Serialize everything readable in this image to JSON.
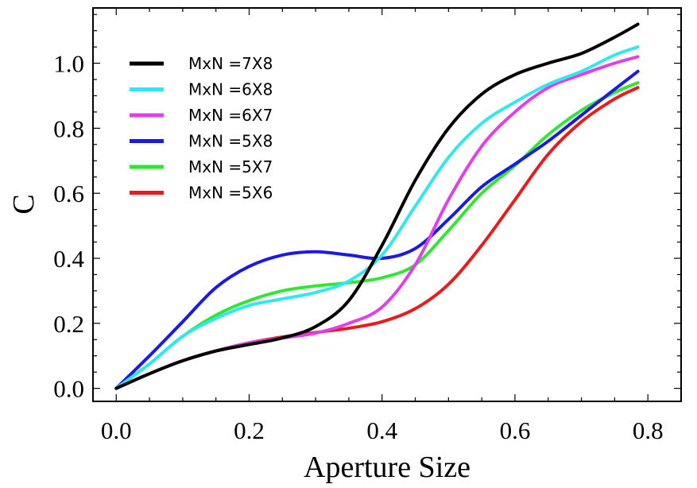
{
  "chart_data": {
    "type": "line",
    "title": "",
    "xlabel": "Aperture Size",
    "ylabel": "C",
    "xlim": [
      -0.035,
      0.85
    ],
    "ylim": [
      -0.04,
      1.17
    ],
    "xticks": [
      0.0,
      0.2,
      0.4,
      0.6,
      0.8
    ],
    "xtick_labels": [
      "0.0",
      "0.2",
      "0.4",
      "0.6",
      "0.8"
    ],
    "yticks": [
      0.0,
      0.2,
      0.4,
      0.6,
      0.8,
      1.0
    ],
    "ytick_labels": [
      "0.0",
      "0.2",
      "0.4",
      "0.6",
      "0.8",
      "1.0"
    ],
    "grid": false,
    "legend_position": "top-left",
    "x": [
      0.0,
      0.05,
      0.1,
      0.15,
      0.2,
      0.25,
      0.3,
      0.35,
      0.4,
      0.45,
      0.5,
      0.55,
      0.6,
      0.65,
      0.7,
      0.75,
      0.785
    ],
    "series": [
      {
        "name": "MxN =7X8",
        "color": "#000000",
        "values": [
          0.0,
          0.045,
          0.085,
          0.115,
          0.135,
          0.155,
          0.19,
          0.27,
          0.44,
          0.64,
          0.8,
          0.905,
          0.965,
          1.0,
          1.03,
          1.08,
          1.12
        ]
      },
      {
        "name": "MxN =6X8",
        "color": "#33e6f0",
        "values": [
          0.0,
          0.075,
          0.16,
          0.215,
          0.255,
          0.275,
          0.295,
          0.33,
          0.41,
          0.56,
          0.71,
          0.815,
          0.88,
          0.935,
          0.975,
          1.025,
          1.05
        ]
      },
      {
        "name": "MxN =6X7",
        "color": "#e040e8",
        "values": [
          0.0,
          0.045,
          0.085,
          0.115,
          0.14,
          0.155,
          0.17,
          0.2,
          0.25,
          0.38,
          0.58,
          0.745,
          0.85,
          0.925,
          0.965,
          1.0,
          1.02
        ]
      },
      {
        "name": "MxN =5X8",
        "color": "#1a1ae0",
        "values": [
          0.0,
          0.1,
          0.205,
          0.31,
          0.375,
          0.41,
          0.42,
          0.41,
          0.4,
          0.43,
          0.52,
          0.62,
          0.69,
          0.76,
          0.84,
          0.92,
          0.975
        ]
      },
      {
        "name": "MxN =5X7",
        "color": "#33e633",
        "values": [
          0.0,
          0.075,
          0.16,
          0.225,
          0.27,
          0.3,
          0.315,
          0.325,
          0.34,
          0.38,
          0.485,
          0.6,
          0.685,
          0.78,
          0.855,
          0.91,
          0.94
        ]
      },
      {
        "name": "MxN =5X6",
        "color": "#e81c1c",
        "values": [
          0.0,
          0.045,
          0.085,
          0.115,
          0.14,
          0.158,
          0.172,
          0.185,
          0.205,
          0.245,
          0.32,
          0.44,
          0.58,
          0.72,
          0.82,
          0.89,
          0.925
        ]
      }
    ]
  }
}
